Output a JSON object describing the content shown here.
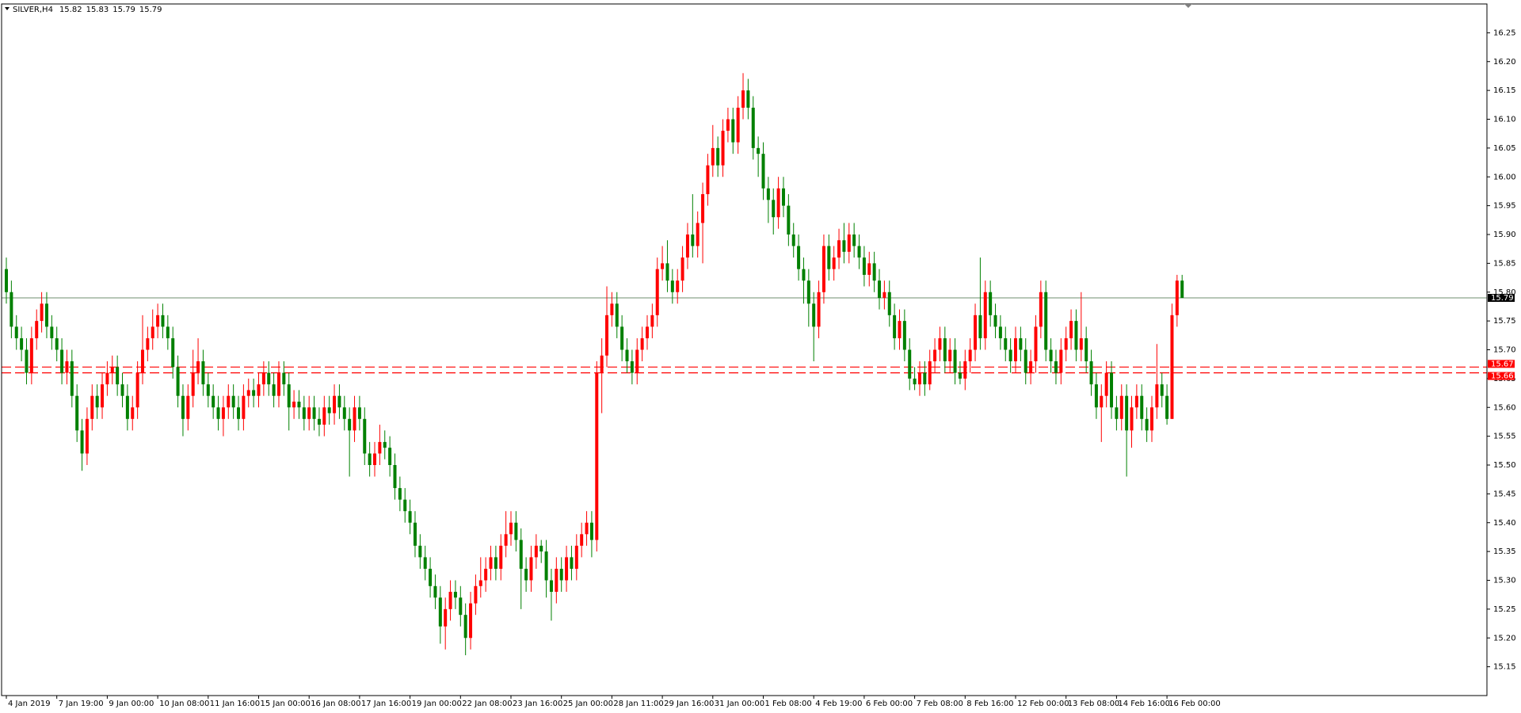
{
  "chart_data": {
    "type": "candlestick",
    "title": "SILVER,H4",
    "header_values": [
      15.82,
      15.83,
      15.79,
      15.79
    ],
    "up_color": "#ff0000",
    "down_color": "#008000",
    "ylim": [
      15.1,
      16.3
    ],
    "yticks": [
      15.15,
      {
        "value": 15.2,
        "label": "15.20"
      },
      15.25,
      {
        "value": 15.3,
        "label": "15.30"
      },
      15.35,
      {
        "value": 15.4,
        "label": "15.40"
      },
      15.45,
      {
        "value": 15.5,
        "label": "15.50"
      },
      15.55,
      {
        "value": 15.6,
        "label": "15.60"
      },
      15.65,
      {
        "value": 15.7,
        "label": "15.70"
      },
      15.75,
      {
        "value": 15.8,
        "label": "15.80"
      },
      15.85,
      {
        "value": 15.9,
        "label": "15.90"
      },
      15.95,
      {
        "value": 16,
        "label": "16.00"
      },
      16.05,
      {
        "value": 16.1,
        "label": "16.10"
      },
      16.15,
      {
        "value": 16.2,
        "label": "16.20"
      },
      16.25
    ],
    "xticks": [
      {
        "value": 0,
        "label": "4 Jan 2019"
      },
      {
        "value": 10,
        "label": "7 Jan 19:00"
      },
      {
        "value": 20,
        "label": "9 Jan 00:00"
      },
      {
        "value": 30,
        "label": "10 Jan 08:00"
      },
      {
        "value": 40,
        "label": "11 Jan 16:00"
      },
      {
        "value": 50,
        "label": "15 Jan 00:00"
      },
      {
        "value": 60,
        "label": "16 Jan 08:00"
      },
      {
        "value": 70,
        "label": "17 Jan 16:00"
      },
      {
        "value": 80,
        "label": "19 Jan 00:00"
      },
      {
        "value": 90,
        "label": "22 Jan 08:00"
      },
      {
        "value": 100,
        "label": "23 Jan 16:00"
      },
      {
        "value": 110,
        "label": "25 Jan 00:00"
      },
      {
        "value": 120,
        "label": "28 Jan 11:00"
      },
      {
        "value": 130,
        "label": "29 Jan 16:00"
      },
      {
        "value": 140,
        "label": "31 Jan 00:00"
      },
      {
        "value": 150,
        "label": "1 Feb 08:00"
      },
      {
        "value": 160,
        "label": "4 Feb 19:00"
      },
      {
        "value": 170,
        "label": "6 Feb 00:00"
      },
      {
        "value": 180,
        "label": "7 Feb 08:00"
      },
      {
        "value": 190,
        "label": "8 Feb 16:00"
      },
      {
        "value": 200,
        "label": "12 Feb 00:00"
      },
      {
        "value": 210,
        "label": "13 Feb 08:00"
      },
      {
        "value": 220,
        "label": "14 Feb 16:00"
      },
      {
        "value": 230,
        "label": "16 Feb 00:00"
      }
    ],
    "price_line": 15.79,
    "price_line_color": "#6f8f6f",
    "levels": [
      15.67,
      15.66
    ],
    "level_color": "#ff0000",
    "open": [
      15.84,
      15.8,
      15.74,
      15.72,
      15.7,
      15.66,
      15.72,
      15.75,
      15.78,
      15.74,
      15.72,
      15.7,
      15.66,
      15.68,
      15.62,
      15.56,
      15.52,
      15.58,
      15.62,
      15.6,
      15.64,
      15.66,
      15.67,
      15.64,
      15.62,
      15.58,
      15.6,
      15.66,
      15.7,
      15.72,
      15.74,
      15.76,
      15.74,
      15.72,
      15.67,
      15.62,
      15.58,
      15.62,
      15.66,
      15.68,
      15.64,
      15.62,
      15.6,
      15.58,
      15.6,
      15.62,
      15.6,
      15.58,
      15.62,
      15.63,
      15.62,
      15.64,
      15.66,
      15.64,
      15.62,
      15.66,
      15.64,
      15.6,
      15.61,
      15.6,
      15.58,
      15.6,
      15.58,
      15.57,
      15.6,
      15.59,
      15.62,
      15.6,
      15.58,
      15.56,
      15.6,
      15.58,
      15.52,
      15.5,
      15.52,
      15.54,
      15.53,
      15.5,
      15.46,
      15.44,
      15.42,
      15.4,
      15.36,
      15.34,
      15.32,
      15.29,
      15.27,
      15.22,
      15.25,
      15.28,
      15.27,
      15.24,
      15.2,
      15.26,
      15.29,
      15.3,
      15.32,
      15.34,
      15.32,
      15.36,
      15.38,
      15.4,
      15.37,
      15.32,
      15.3,
      15.34,
      15.36,
      15.35,
      15.3,
      15.28,
      15.32,
      15.3,
      15.34,
      15.32,
      15.36,
      15.38,
      15.4,
      15.37,
      15.66,
      15.69,
      15.76,
      15.78,
      15.74,
      15.7,
      15.68,
      15.66,
      15.7,
      15.72,
      15.74,
      15.76,
      15.84,
      15.85,
      15.82,
      15.8,
      15.82,
      15.86,
      15.9,
      15.88,
      15.92,
      15.97,
      16.02,
      16.05,
      16.02,
      16.08,
      16.1,
      16.06,
      16.12,
      16.15,
      16.12,
      16.05,
      16.04,
      15.98,
      15.96,
      15.93,
      15.98,
      15.95,
      15.9,
      15.88,
      15.84,
      15.82,
      15.78,
      15.74,
      15.8,
      15.88,
      15.84,
      15.86,
      15.89,
      15.87,
      15.9,
      15.88,
      15.86,
      15.83,
      15.85,
      15.82,
      15.79,
      15.8,
      15.76,
      15.72,
      15.75,
      15.7,
      15.65,
      15.64,
      15.66,
      15.64,
      15.68,
      15.7,
      15.72,
      15.68,
      15.7,
      15.66,
      15.65,
      15.68,
      15.7,
      15.76,
      15.72,
      15.8,
      15.76,
      15.74,
      15.72,
      15.7,
      15.68,
      15.72,
      15.7,
      15.66,
      15.68,
      15.74,
      15.8,
      15.7,
      15.68,
      15.66,
      15.7,
      15.72,
      15.75,
      15.7,
      15.72,
      15.68,
      15.64,
      15.6,
      15.62,
      15.66,
      15.6,
      15.58,
      15.62,
      15.56,
      15.6,
      15.62,
      15.58,
      15.56,
      15.6,
      15.64,
      15.62,
      15.58,
      15.76,
      15.82
    ],
    "high": [
      15.86,
      15.82,
      15.76,
      15.74,
      15.72,
      15.74,
      15.77,
      15.8,
      15.8,
      15.76,
      15.74,
      15.72,
      15.7,
      15.7,
      15.64,
      15.58,
      15.6,
      15.64,
      15.64,
      15.66,
      15.68,
      15.69,
      15.69,
      15.66,
      15.64,
      15.62,
      15.68,
      15.76,
      15.74,
      15.77,
      15.78,
      15.78,
      15.76,
      15.74,
      15.69,
      15.64,
      15.64,
      15.7,
      15.72,
      15.7,
      15.66,
      15.64,
      15.62,
      15.62,
      15.64,
      15.64,
      15.62,
      15.64,
      15.65,
      15.65,
      15.66,
      15.68,
      15.68,
      15.66,
      15.68,
      15.68,
      15.66,
      15.63,
      15.63,
      15.62,
      15.62,
      15.62,
      15.6,
      15.62,
      15.62,
      15.64,
      15.64,
      15.62,
      15.6,
      15.62,
      15.62,
      15.6,
      15.54,
      15.54,
      15.57,
      15.56,
      15.55,
      15.52,
      15.48,
      15.46,
      15.44,
      15.42,
      15.38,
      15.36,
      15.34,
      15.31,
      15.29,
      15.27,
      15.3,
      15.3,
      15.29,
      15.26,
      15.28,
      15.31,
      15.34,
      15.34,
      15.36,
      15.36,
      15.38,
      15.42,
      15.42,
      15.42,
      15.39,
      15.34,
      15.36,
      15.38,
      15.37,
      15.37,
      15.32,
      15.34,
      15.34,
      15.36,
      15.36,
      15.38,
      15.4,
      15.42,
      15.42,
      15.68,
      15.72,
      15.81,
      15.8,
      15.8,
      15.76,
      15.72,
      15.7,
      15.72,
      15.74,
      15.76,
      15.78,
      15.86,
      15.88,
      15.89,
      15.84,
      15.84,
      15.88,
      15.92,
      15.97,
      15.94,
      15.99,
      16.04,
      16.09,
      16.07,
      16.1,
      16.12,
      16.12,
      16.14,
      16.18,
      16.17,
      16.14,
      16.07,
      16.06,
      16,
      15.98,
      16,
      16,
      15.97,
      15.92,
      15.9,
      15.86,
      15.84,
      15.8,
      15.82,
      15.9,
      15.9,
      15.88,
      15.91,
      15.92,
      15.92,
      15.92,
      15.9,
      15.88,
      15.87,
      15.87,
      15.84,
      15.82,
      15.82,
      15.78,
      15.77,
      15.77,
      15.72,
      15.67,
      15.68,
      15.68,
      15.7,
      15.72,
      15.74,
      15.74,
      15.72,
      15.72,
      15.68,
      15.7,
      15.72,
      15.78,
      15.86,
      15.82,
      15.82,
      15.78,
      15.76,
      15.74,
      15.72,
      15.74,
      15.74,
      15.72,
      15.7,
      15.76,
      15.82,
      15.82,
      15.72,
      15.7,
      15.72,
      15.74,
      15.77,
      15.77,
      15.8,
      15.74,
      15.7,
      15.66,
      15.64,
      15.68,
      15.68,
      15.62,
      15.64,
      15.64,
      15.62,
      15.64,
      15.64,
      15.6,
      15.62,
      15.71,
      15.66,
      15.64,
      15.78,
      15.83,
      15.83
    ],
    "low": [
      15.78,
      15.72,
      15.7,
      15.68,
      15.64,
      15.64,
      15.7,
      15.73,
      15.72,
      15.7,
      15.68,
      15.64,
      15.64,
      15.6,
      15.54,
      15.49,
      15.5,
      15.56,
      15.58,
      15.58,
      15.62,
      15.64,
      15.62,
      15.6,
      15.56,
      15.56,
      15.58,
      15.64,
      15.68,
      15.7,
      15.72,
      15.72,
      15.7,
      15.65,
      15.6,
      15.55,
      15.56,
      15.6,
      15.64,
      15.62,
      15.6,
      15.58,
      15.56,
      15.55,
      15.58,
      15.58,
      15.56,
      15.56,
      15.6,
      15.6,
      15.6,
      15.62,
      15.62,
      15.6,
      15.6,
      15.62,
      15.56,
      15.58,
      15.58,
      15.56,
      15.56,
      15.56,
      15.55,
      15.55,
      15.57,
      15.57,
      15.58,
      15.56,
      15.48,
      15.54,
      15.56,
      15.5,
      15.48,
      15.48,
      15.5,
      15.51,
      15.48,
      15.44,
      15.42,
      15.4,
      15.38,
      15.34,
      15.32,
      15.3,
      15.27,
      15.25,
      15.19,
      15.18,
      15.23,
      15.25,
      15.22,
      15.17,
      15.18,
      15.24,
      15.27,
      15.28,
      15.3,
      15.3,
      15.3,
      15.34,
      15.36,
      15.35,
      15.25,
      15.28,
      15.28,
      15.32,
      15.33,
      15.27,
      15.23,
      15.26,
      15.28,
      15.28,
      15.3,
      15.3,
      15.34,
      15.36,
      15.34,
      15.35,
      15.59,
      15.67,
      15.74,
      15.72,
      15.68,
      15.66,
      15.64,
      15.64,
      15.68,
      15.7,
      15.72,
      15.74,
      15.82,
      15.8,
      15.78,
      15.78,
      15.8,
      15.84,
      15.86,
      15.86,
      15.85,
      15.95,
      16,
      16,
      16,
      16.06,
      16.04,
      16.04,
      16.1,
      16.1,
      16.03,
      16,
      15.96,
      15.92,
      15.9,
      15.91,
      15.93,
      15.88,
      15.86,
      15.82,
      15.78,
      15.74,
      15.68,
      15.72,
      15.78,
      15.82,
      15.82,
      15.84,
      15.85,
      15.85,
      15.86,
      15.84,
      15.81,
      15.81,
      15.8,
      15.77,
      15.77,
      15.74,
      15.7,
      15.7,
      15.68,
      15.63,
      15.63,
      15.62,
      15.62,
      15.63,
      15.66,
      15.68,
      15.66,
      15.66,
      15.64,
      15.64,
      15.63,
      15.66,
      15.68,
      15.7,
      15.7,
      15.74,
      15.72,
      15.7,
      15.68,
      15.66,
      15.66,
      15.68,
      15.64,
      15.64,
      15.66,
      15.72,
      15.68,
      15.66,
      15.64,
      15.64,
      15.68,
      15.7,
      15.68,
      15.68,
      15.66,
      15.62,
      15.58,
      15.54,
      15.6,
      15.58,
      15.56,
      15.56,
      15.48,
      15.53,
      15.58,
      15.56,
      15.54,
      15.54,
      15.58,
      15.6,
      15.57,
      15.58,
      15.74,
      15.79
    ],
    "close": [
      15.8,
      15.74,
      15.72,
      15.7,
      15.66,
      15.72,
      15.75,
      15.78,
      15.74,
      15.72,
      15.7,
      15.66,
      15.68,
      15.62,
      15.56,
      15.52,
      15.58,
      15.62,
      15.6,
      15.64,
      15.66,
      15.67,
      15.64,
      15.62,
      15.58,
      15.6,
      15.66,
      15.7,
      15.72,
      15.74,
      15.76,
      15.74,
      15.72,
      15.67,
      15.62,
      15.58,
      15.62,
      15.66,
      15.68,
      15.64,
      15.62,
      15.6,
      15.58,
      15.6,
      15.62,
      15.6,
      15.58,
      15.62,
      15.63,
      15.62,
      15.64,
      15.66,
      15.64,
      15.62,
      15.66,
      15.64,
      15.6,
      15.61,
      15.6,
      15.58,
      15.6,
      15.58,
      15.57,
      15.6,
      15.59,
      15.62,
      15.6,
      15.58,
      15.56,
      15.6,
      15.58,
      15.52,
      15.5,
      15.52,
      15.54,
      15.53,
      15.5,
      15.46,
      15.44,
      15.42,
      15.4,
      15.36,
      15.34,
      15.32,
      15.29,
      15.27,
      15.22,
      15.25,
      15.28,
      15.27,
      15.24,
      15.2,
      15.26,
      15.29,
      15.3,
      15.32,
      15.34,
      15.32,
      15.36,
      15.38,
      15.4,
      15.37,
      15.32,
      15.3,
      15.34,
      15.36,
      15.35,
      15.3,
      15.28,
      15.32,
      15.3,
      15.34,
      15.32,
      15.36,
      15.38,
      15.4,
      15.37,
      15.66,
      15.69,
      15.76,
      15.78,
      15.74,
      15.7,
      15.68,
      15.66,
      15.7,
      15.72,
      15.74,
      15.76,
      15.84,
      15.85,
      15.82,
      15.8,
      15.82,
      15.86,
      15.9,
      15.88,
      15.92,
      15.97,
      16.02,
      16.05,
      16.02,
      16.08,
      16.1,
      16.06,
      16.12,
      16.15,
      16.12,
      16.05,
      16.04,
      15.98,
      15.96,
      15.93,
      15.98,
      15.95,
      15.9,
      15.88,
      15.84,
      15.82,
      15.78,
      15.74,
      15.8,
      15.88,
      15.84,
      15.86,
      15.89,
      15.87,
      15.9,
      15.88,
      15.86,
      15.83,
      15.85,
      15.82,
      15.79,
      15.8,
      15.76,
      15.72,
      15.75,
      15.7,
      15.65,
      15.64,
      15.66,
      15.64,
      15.68,
      15.7,
      15.72,
      15.68,
      15.7,
      15.66,
      15.65,
      15.68,
      15.7,
      15.76,
      15.72,
      15.8,
      15.76,
      15.74,
      15.72,
      15.7,
      15.68,
      15.72,
      15.7,
      15.66,
      15.68,
      15.74,
      15.8,
      15.7,
      15.68,
      15.66,
      15.7,
      15.72,
      15.75,
      15.7,
      15.72,
      15.68,
      15.64,
      15.6,
      15.62,
      15.66,
      15.6,
      15.58,
      15.62,
      15.56,
      15.6,
      15.62,
      15.58,
      15.56,
      15.6,
      15.64,
      15.62,
      15.58,
      15.76,
      15.82,
      15.79
    ]
  }
}
